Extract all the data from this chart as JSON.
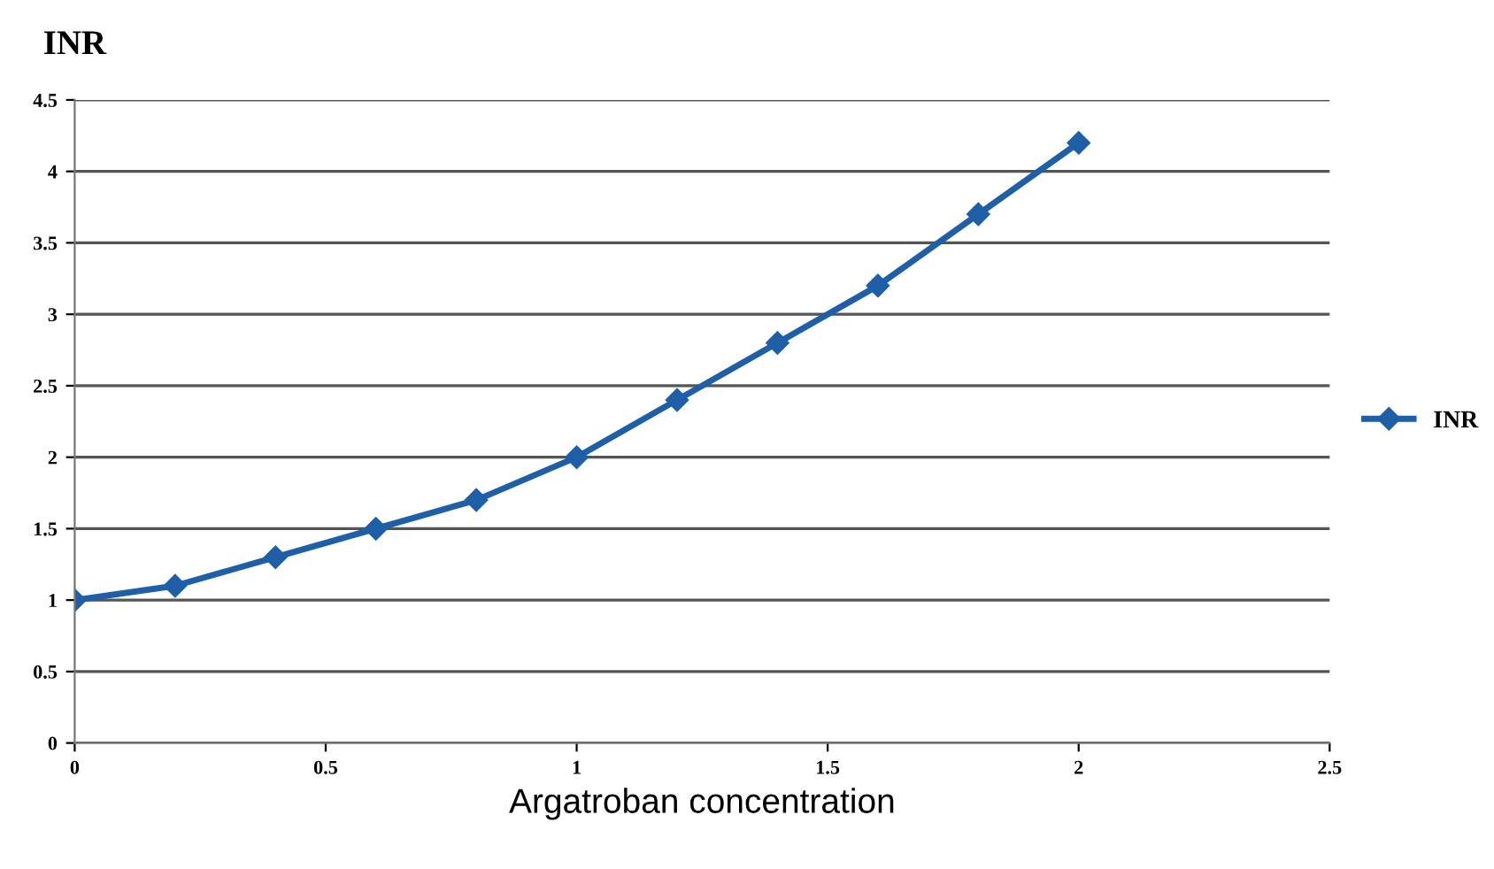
{
  "chart_data": {
    "type": "line",
    "ylabel": "INR",
    "xlabel": "Argatroban concentration",
    "x": [
      0,
      0.2,
      0.4,
      0.6,
      0.8,
      1,
      1.2,
      1.4,
      1.6,
      1.8,
      2
    ],
    "series": [
      {
        "name": "INR",
        "color": "#1f5fa8",
        "values": [
          1,
          1.1,
          1.3,
          1.5,
          1.7,
          2,
          2.4,
          2.8,
          3.2,
          3.7,
          4.2
        ]
      }
    ],
    "xlim": [
      0,
      2.5
    ],
    "xticks": [
      0,
      0.5,
      1,
      1.5,
      2,
      2.5
    ],
    "ylim": [
      0,
      4.5
    ],
    "yticks": [
      0,
      0.5,
      1,
      1.5,
      2,
      2.5,
      3,
      3.5,
      4,
      4.5
    ],
    "grid": "y",
    "legend": "right",
    "marker": "diamond",
    "line_style": "solid"
  }
}
